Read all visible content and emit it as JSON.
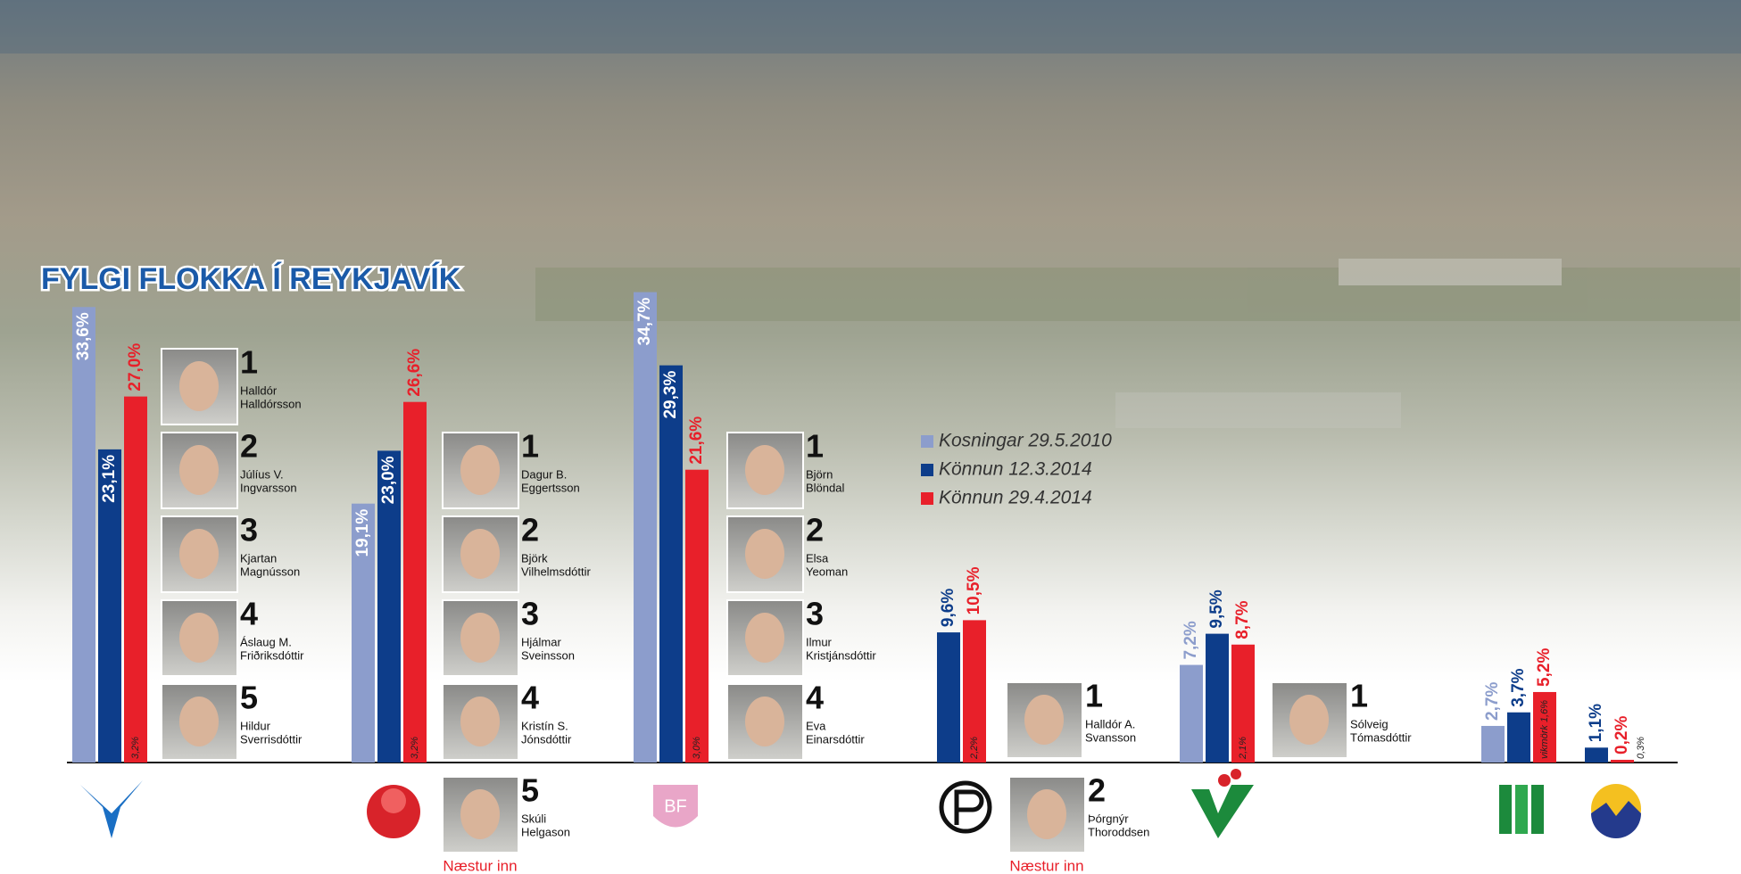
{
  "chart_data": {
    "type": "bar",
    "title": "FYLGI FLOKKA Í REYKJAVÍK",
    "categories": [
      null,
      null,
      null,
      null,
      null,
      null,
      null
    ],
    "series": [
      {
        "name": "Kosningar 29.5.2010",
        "color": "#8c9dcc",
        "values": [
          33.6,
          19.1,
          34.7,
          null,
          7.2,
          2.7,
          null
        ],
        "value_labels": [
          "33,6%",
          "19,1%",
          "34,7%",
          null,
          "7,2%",
          "2,7%",
          null
        ]
      },
      {
        "name": "Könnun 12.3.2014",
        "color": "#0d3d8a",
        "values": [
          23.1,
          23.0,
          29.3,
          9.6,
          9.5,
          3.7,
          1.1
        ],
        "value_labels": [
          "23,1%",
          "23,0%",
          "29,3%",
          "9,6%",
          "9,5%",
          "3,7%",
          "1,1%"
        ]
      },
      {
        "name": "Könnun 29.4.2014",
        "color": "#e8202a",
        "values": [
          27.0,
          26.6,
          21.6,
          10.5,
          8.7,
          5.2,
          0.2
        ],
        "value_labels": [
          "27,0%",
          "26,6%",
          "21,6%",
          "10,5%",
          "8,7%",
          "5,2%",
          "0,2%"
        ]
      }
    ],
    "error_labels": [
      "3,2%",
      "3,2%",
      "3,0%",
      "2,2%",
      "2,1%",
      "vikmörk 1,6%",
      "0,3%"
    ],
    "ylim": [
      0,
      35
    ],
    "legend": "right"
  },
  "candidates": [
    [
      {
        "number": 1,
        "name": [
          "Halldór",
          "Halldórsson"
        ]
      },
      {
        "number": 2,
        "name": [
          "Júlíus V.",
          "Ingvarsson"
        ]
      },
      {
        "number": 3,
        "name": [
          "Kjartan",
          "Magnússon"
        ]
      },
      {
        "number": 4,
        "name": [
          "Áslaug M.",
          "Friðriksdóttir"
        ]
      },
      {
        "number": 5,
        "name": [
          "Hildur",
          "Sverrisdóttir"
        ]
      }
    ],
    [
      {
        "number": 1,
        "name": [
          "Dagur B.",
          "Eggertsson"
        ]
      },
      {
        "number": 2,
        "name": [
          "Björk",
          "Vilhelmsdóttir"
        ]
      },
      {
        "number": 3,
        "name": [
          "Hjálmar",
          "Sveinsson"
        ]
      },
      {
        "number": 4,
        "name": [
          "Kristín S.",
          "Jónsdóttir"
        ]
      }
    ],
    [
      {
        "number": 1,
        "name": [
          "Björn",
          "Blöndal"
        ]
      },
      {
        "number": 2,
        "name": [
          "Elsa",
          "Yeoman"
        ]
      },
      {
        "number": 3,
        "name": [
          "Ilmur",
          "Kristjánsdóttir"
        ]
      },
      {
        "number": 4,
        "name": [
          "Eva",
          "Einarsdóttir"
        ]
      }
    ],
    [
      {
        "number": 1,
        "name": [
          "Halldór A.",
          "Svansson"
        ]
      }
    ],
    [
      {
        "number": 1,
        "name": [
          "Sólveig",
          "Tómasdóttir"
        ]
      }
    ],
    [],
    []
  ],
  "next_in": [
    null,
    {
      "number": 5,
      "name": [
        "Skúli",
        "Helgason"
      ],
      "note": "Næstur inn"
    },
    null,
    {
      "number": 2,
      "name": [
        "Þórgnýr",
        "Thoroddsen"
      ],
      "note": "Næstur inn"
    },
    null,
    null,
    null
  ]
}
